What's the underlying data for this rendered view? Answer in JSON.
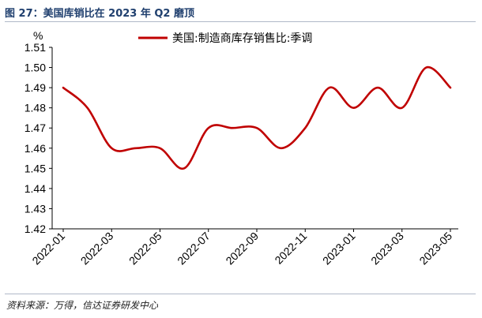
{
  "figure": {
    "title": "图 27：美国库销比在 2023 年 Q2 磨顶",
    "source": "资料来源：万得，信达证券研发中心"
  },
  "chart_data": {
    "type": "line",
    "ylabel": "%",
    "ylim": [
      1.42,
      1.51
    ],
    "yticks": [
      "1.42",
      "1.43",
      "1.44",
      "1.45",
      "1.46",
      "1.47",
      "1.48",
      "1.49",
      "1.50",
      "1.51"
    ],
    "xticks": [
      "2022-01",
      "2022-03",
      "2022-05",
      "2022-07",
      "2022-09",
      "2022-11",
      "2023-01",
      "2023-03",
      "2023-05"
    ],
    "grid": false,
    "legend_position": "top",
    "color": "#c00000",
    "series": [
      {
        "name": "美国:制造商库存销售比:季调",
        "x": [
          "2022-01",
          "2022-02",
          "2022-03",
          "2022-04",
          "2022-05",
          "2022-06",
          "2022-07",
          "2022-08",
          "2022-09",
          "2022-10",
          "2022-11",
          "2022-12",
          "2023-01",
          "2023-02",
          "2023-03",
          "2023-04",
          "2023-05"
        ],
        "values": [
          1.49,
          1.48,
          1.46,
          1.46,
          1.46,
          1.45,
          1.47,
          1.47,
          1.47,
          1.46,
          1.47,
          1.49,
          1.48,
          1.49,
          1.48,
          1.5,
          1.49
        ]
      }
    ]
  }
}
